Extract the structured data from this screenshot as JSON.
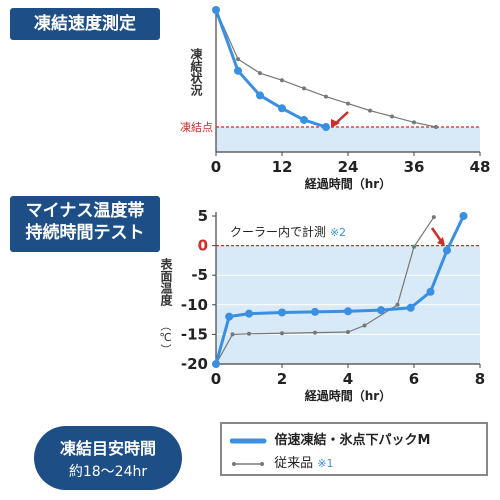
{
  "titles": {
    "chart1": "凍結速度測定",
    "chart2_line1": "マイナス温度帯",
    "chart2_line2": "持続時間テスト"
  },
  "badge": {
    "line1": "凍結目安時間",
    "line2": "約18〜24hr"
  },
  "legend": {
    "series1": "倍速凍結・氷点下パックM",
    "series2": "従来品",
    "series2_note": "※1"
  },
  "colors": {
    "series1": "#3a8fe0",
    "series2": "#777777",
    "freeze": "#d22b2b",
    "fill": "#d8e9f7",
    "title_bg": "#1d4e86"
  },
  "chart_data": [
    {
      "type": "line",
      "title": "凍結速度測定",
      "xlabel": "経過時間（hr）",
      "ylabel": "凍結状況",
      "xlim": [
        0,
        48
      ],
      "xticks": [
        "0",
        "12",
        "24",
        "36",
        "48"
      ],
      "reference_line": {
        "label": "凍結点",
        "y": 0
      },
      "ylim": [
        0,
        100
      ],
      "series": [
        {
          "name": "倍速凍結・氷点下パックM",
          "x": [
            0,
            4,
            8,
            12,
            16,
            20
          ],
          "y": [
            100,
            48,
            27,
            16,
            6,
            0
          ]
        },
        {
          "name": "従来品",
          "x": [
            0,
            4,
            8,
            12,
            16,
            20,
            24,
            28,
            32,
            36,
            40
          ],
          "y": [
            100,
            58,
            46,
            40,
            33,
            26,
            20,
            14,
            9,
            4,
            0
          ]
        }
      ]
    },
    {
      "type": "line",
      "title": "マイナス温度帯持続時間テスト",
      "xlabel": "経過時間（hr）",
      "ylabel": "表面温度",
      "yunit": "（℃）",
      "xlim": [
        0,
        8
      ],
      "ylim": [
        -20,
        5
      ],
      "xticks": [
        "0",
        "2",
        "4",
        "6",
        "8"
      ],
      "yticks": [
        "5",
        "0",
        "-5",
        "-10",
        "-15",
        "-20"
      ],
      "annotation": "クーラー内で計測",
      "annotation_note": "※2",
      "series": [
        {
          "name": "倍速凍結・氷点下パックM",
          "x": [
            0,
            0.4,
            1,
            2,
            3,
            4,
            5,
            5.9,
            6.5,
            7.0,
            7.5
          ],
          "y": [
            -20,
            -12,
            -11.5,
            -11.3,
            -11.2,
            -11.1,
            -10.9,
            -10.5,
            -7.8,
            -0.8,
            5
          ]
        },
        {
          "name": "従来品",
          "x": [
            0,
            0.5,
            1,
            2,
            3,
            4,
            4.5,
            5.5,
            6.0,
            6.6
          ],
          "y": [
            -20,
            -15,
            -14.9,
            -14.8,
            -14.7,
            -14.6,
            -13.5,
            -10,
            -0.2,
            4.8
          ]
        }
      ]
    }
  ]
}
